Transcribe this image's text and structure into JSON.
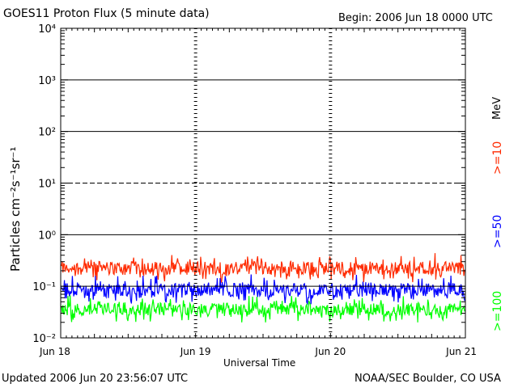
{
  "chart_data": {
    "type": "line",
    "title": "GOES11 Proton Flux (5 minute data)",
    "begin": "Begin: 2006 Jun 18 0000 UTC",
    "updated": "Updated 2006 Jun 20 23:56:07 UTC",
    "credit": "NOAA/SEC Boulder, CO USA",
    "xlabel": "Universal Time",
    "ylabel": "Particles cm⁻²s⁻¹sr⁻¹",
    "y_scale": "log",
    "ylim": [
      0.01,
      10000
    ],
    "y_ticks": [
      {
        "value": 0.01,
        "label": "10⁻²"
      },
      {
        "value": 0.1,
        "label": "10⁻¹"
      },
      {
        "value": 1,
        "label": "10⁰"
      },
      {
        "value": 10,
        "label": "10¹"
      },
      {
        "value": 100,
        "label": "10²"
      },
      {
        "value": 1000,
        "label": "10³"
      },
      {
        "value": 10000,
        "label": "10⁴"
      }
    ],
    "x_ticks": [
      "Jun 18",
      "Jun 19",
      "Jun 20",
      "Jun 21"
    ],
    "xlim": [
      "2006-06-18",
      "2006-06-21"
    ],
    "unit_label": "MeV",
    "series": [
      {
        "name": ">=10",
        "color": "#ff2a00",
        "approx_range": [
          0.12,
          0.45
        ]
      },
      {
        "name": ">=50",
        "color": "#0000ff",
        "approx_range": [
          0.045,
          0.17
        ]
      },
      {
        "name": ">=100",
        "color": "#00ff00",
        "approx_range": [
          0.02,
          0.07
        ]
      }
    ]
  }
}
